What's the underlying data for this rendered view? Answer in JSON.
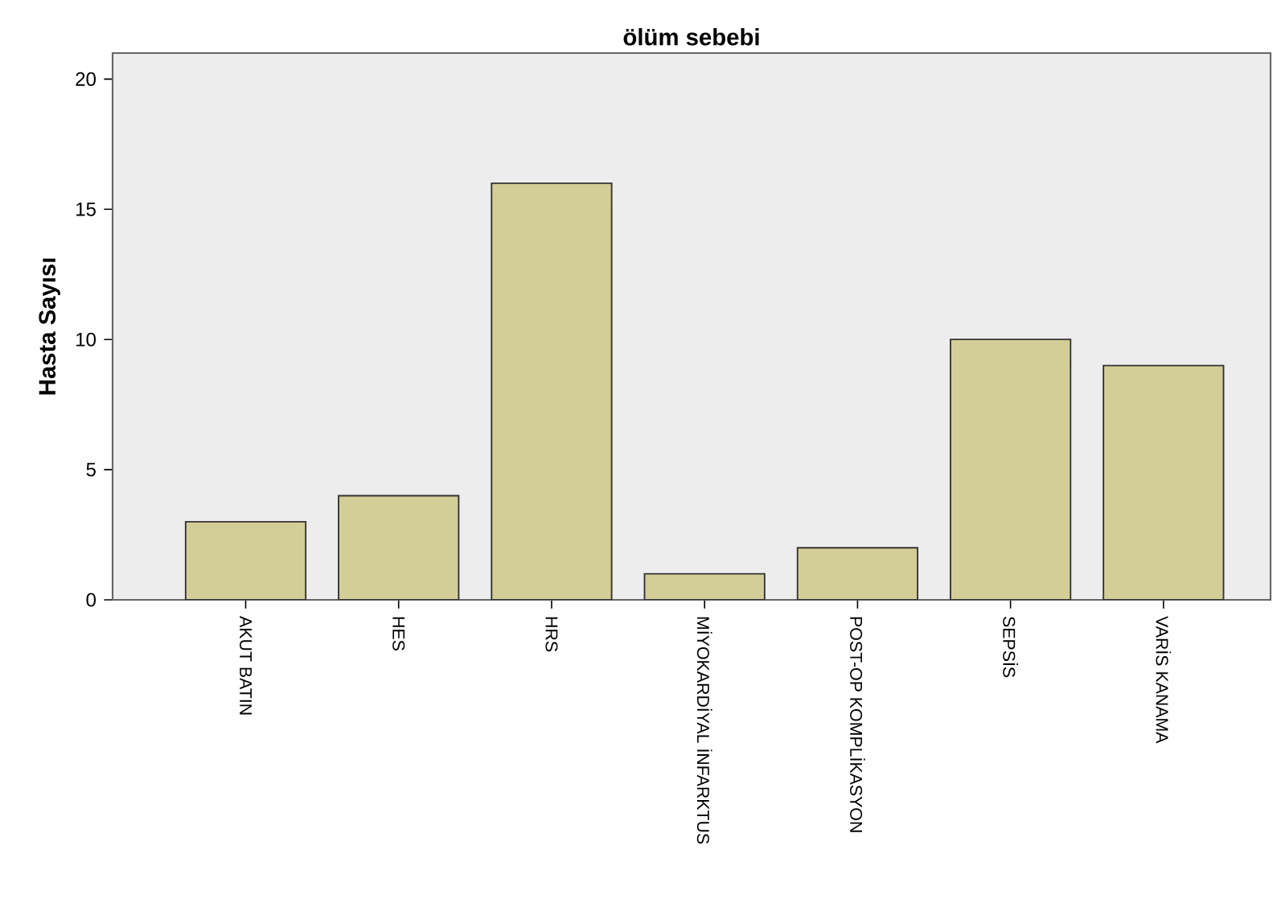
{
  "chart_data": {
    "type": "bar",
    "title": "ölüm sebebi",
    "ylabel": "Hasta Sayısı",
    "categories": [
      "AKUT BATIN",
      "HES",
      "HRS",
      "MİYOKARDİYAL İNFARKTUS",
      "POST-OP KOMPLİKASYON",
      "SEPSİS",
      "VARİS KANAMA"
    ],
    "values": [
      3,
      4,
      16,
      1,
      2,
      10,
      9
    ],
    "color": "#d3ce97",
    "ylim": [
      0,
      21
    ],
    "yticks": [
      0,
      5,
      10,
      15,
      20
    ],
    "grid": false
  }
}
